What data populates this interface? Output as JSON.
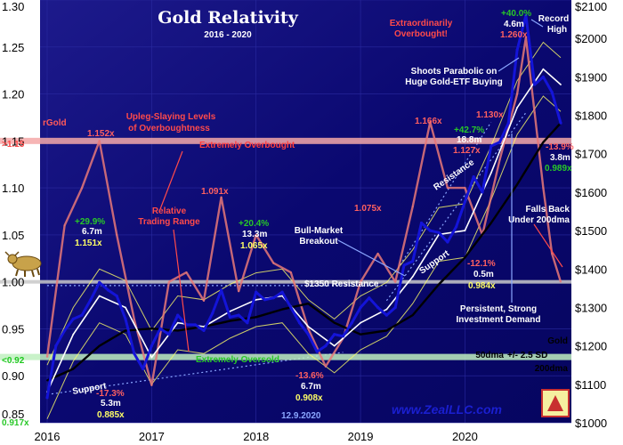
{
  "chart_data": {
    "type": "line",
    "title": "Gold Relativity",
    "subtitle": "2016 - 2020",
    "date": "12.9.2020",
    "site": "www.ZealLLC.com",
    "x_labels": [
      "2016",
      "2017",
      "2018",
      "2019",
      "2020"
    ],
    "xlim": [
      "2016-01",
      "2020-12"
    ],
    "left_axis": {
      "ylim": [
        0.85,
        1.3
      ],
      "ticks": [
        "0.85",
        "0.90",
        "0.95",
        "1.00",
        "1.05",
        "1.10",
        "1.15",
        "1.20",
        "1.25",
        "1.30"
      ]
    },
    "right_axis": {
      "ylim": [
        1000,
        2100
      ],
      "ticks": [
        "$1000",
        "$1100",
        "$1200",
        "$1300",
        "$1400",
        "$1500",
        "$1600",
        "$1700",
        "$1800",
        "$1900",
        "$2000",
        "$2100"
      ]
    },
    "series": [
      {
        "name": "Gold",
        "axis": "right",
        "color": "#1414d8",
        "x": [
          "2016-01",
          "2016-02",
          "2016-03",
          "2016-04",
          "2016-05",
          "2016-06",
          "2016-07",
          "2016-08",
          "2016-09",
          "2016-10",
          "2016-11",
          "2016-12",
          "2017-01",
          "2017-02",
          "2017-03",
          "2017-04",
          "2017-05",
          "2017-06",
          "2017-07",
          "2017-08",
          "2017-09",
          "2017-10",
          "2017-11",
          "2017-12",
          "2018-01",
          "2018-02",
          "2018-03",
          "2018-04",
          "2018-05",
          "2018-06",
          "2018-07",
          "2018-08",
          "2018-09",
          "2018-10",
          "2018-11",
          "2018-12",
          "2019-01",
          "2019-02",
          "2019-03",
          "2019-04",
          "2019-05",
          "2019-06",
          "2019-07",
          "2019-08",
          "2019-09",
          "2019-10",
          "2019-11",
          "2019-12",
          "2020-01",
          "2020-02",
          "2020-03",
          "2020-04",
          "2020-05",
          "2020-06",
          "2020-07",
          "2020-08",
          "2020-09",
          "2020-10",
          "2020-11",
          "2020-12"
        ],
        "values": [
          1065,
          1200,
          1240,
          1270,
          1280,
          1320,
          1365,
          1345,
          1330,
          1270,
          1180,
          1140,
          1200,
          1245,
          1230,
          1280,
          1255,
          1255,
          1240,
          1285,
          1345,
          1275,
          1280,
          1260,
          1340,
          1320,
          1325,
          1340,
          1300,
          1260,
          1230,
          1185,
          1200,
          1230,
          1225,
          1260,
          1300,
          1325,
          1300,
          1280,
          1300,
          1410,
          1420,
          1520,
          1500,
          1495,
          1470,
          1510,
          1575,
          1640,
          1600,
          1720,
          1730,
          1780,
          1970,
          2060,
          1880,
          1900,
          1860,
          1780
        ]
      },
      {
        "name": "50dma",
        "axis": "right",
        "color": "#ffffff",
        "x": [
          "2016-01",
          "2016-04",
          "2016-07",
          "2016-10",
          "2017-01",
          "2017-04",
          "2017-07",
          "2017-10",
          "2018-01",
          "2018-04",
          "2018-07",
          "2018-10",
          "2019-01",
          "2019-04",
          "2019-07",
          "2019-10",
          "2020-01",
          "2020-04",
          "2020-07",
          "2020-10",
          "2020-12"
        ],
        "values": [
          1080,
          1230,
          1330,
          1300,
          1170,
          1260,
          1250,
          1290,
          1320,
          1330,
          1250,
          1200,
          1260,
          1295,
          1380,
          1490,
          1500,
          1650,
          1820,
          1920,
          1880
        ]
      },
      {
        "name": "200dma",
        "axis": "right",
        "color": "#000000",
        "x": [
          "2016-01",
          "2016-04",
          "2016-07",
          "2016-10",
          "2017-01",
          "2017-04",
          "2017-07",
          "2017-10",
          "2018-01",
          "2018-04",
          "2018-07",
          "2018-10",
          "2019-01",
          "2019-04",
          "2019-07",
          "2019-10",
          "2020-01",
          "2020-04",
          "2020-07",
          "2020-10",
          "2020-12"
        ],
        "values": [
          1110,
          1140,
          1200,
          1240,
          1245,
          1240,
          1250,
          1265,
          1275,
          1295,
          1310,
          1260,
          1230,
          1240,
          1280,
          1360,
          1430,
          1520,
          1620,
          1730,
          1780
        ]
      },
      {
        "name": "rGold",
        "axis": "left",
        "color": "#e87878",
        "x": [
          "2016-01",
          "2016-03",
          "2016-05",
          "2016-07",
          "2016-09",
          "2016-11",
          "2017-01",
          "2017-03",
          "2017-05",
          "2017-07",
          "2017-09",
          "2017-11",
          "2018-01",
          "2018-03",
          "2018-05",
          "2018-07",
          "2018-09",
          "2018-11",
          "2019-01",
          "2019-03",
          "2019-05",
          "2019-07",
          "2019-09",
          "2019-11",
          "2020-01",
          "2020-03",
          "2020-05",
          "2020-07",
          "2020-08",
          "2020-09",
          "2020-10",
          "2020-11",
          "2020-12"
        ],
        "values": [
          0.92,
          1.06,
          1.1,
          1.15,
          1.05,
          0.96,
          0.89,
          1.0,
          1.01,
          0.98,
          1.09,
          0.99,
          1.05,
          1.02,
          1.01,
          0.95,
          0.91,
          0.94,
          1.0,
          1.03,
          1.0,
          1.08,
          1.17,
          1.1,
          1.1,
          1.05,
          1.13,
          1.2,
          1.26,
          1.18,
          1.1,
          1.03,
          1.0
        ]
      }
    ],
    "legend": [
      "Gold",
      "50dma",
      "+/- 2.5 SD",
      "200dma"
    ],
    "left_label": "rGold",
    "bands": [
      {
        "level": "1.15",
        "label": "Extremely Overbought",
        "color": "#f4a8a8"
      },
      {
        "level": "0.92",
        "label": "Extremely Oversold",
        "color": "#bff0bf"
      },
      {
        "level": "1.00",
        "label": "$1350 Resistance",
        "color": "#c8c8c8"
      }
    ],
    "annotations": {
      "upleg_levels": "Upleg-Slaying Levels",
      "of_overboughtness": "of Overboughtness",
      "v_1_152": "1.152x",
      "v_1_091": "1.091x",
      "relative": "Relative",
      "trading_range": "Trading Range",
      "v_1_075": "1.075x",
      "v_1_166": "1.166x",
      "v_1_130": "1.130x",
      "v_1_127": "1.127x",
      "extraordinarily": "Extraordinarily",
      "overbought_ex": "Overbought!",
      "v_1_260": "1.260x",
      "record": "Record",
      "high": "High",
      "shoots_parabolic": "Shoots Parabolic on",
      "huge_etf": "Huge Gold-ETF Buying",
      "resistance": "Resistance",
      "support_mid": "Support",
      "support_left": "Support",
      "bull_market": "Bull-Market",
      "breakout": "Breakout",
      "persistent": "Persistent, Strong",
      "investment_demand": "Investment Demand",
      "falls_back": "Falls Back",
      "under_200dma": "Under 200dma",
      "p29": "+29.9%",
      "p29_m": "6.7m",
      "p29_x": "1.151x",
      "p20": "+20.4%",
      "p20_m": "13.3m",
      "p20_x": "1.065x",
      "p42": "+42.7%",
      "p42_m": "18.8m",
      "p40": "+40.0%",
      "p40_m": "4.6m",
      "n17": "-17.3%",
      "n17_m": "5.3m",
      "n17_x": "0.885x",
      "n13_6": "-13.6%",
      "n13_6_m": "6.7m",
      "n13_6_x": "0.908x",
      "n12": "-12.1%",
      "n12_m": "0.5m",
      "n12_x": "0.984x",
      "n13_9": "-13.9%",
      "n13_9_m": "3.8m",
      "n13_9_x": "0.989x",
      "start_x": "0.917x",
      "left_1_15": ">1.15",
      "left_0_92": "<0.92"
    },
    "colors": {
      "background": "#07057a",
      "gold": "#1414d8",
      "rgold": "#e87878",
      "overbought": "#f4a8a8",
      "oversold": "#bff0bf",
      "up": "#28c828",
      "down": "#e83030",
      "yellow": "#ffff66"
    }
  }
}
